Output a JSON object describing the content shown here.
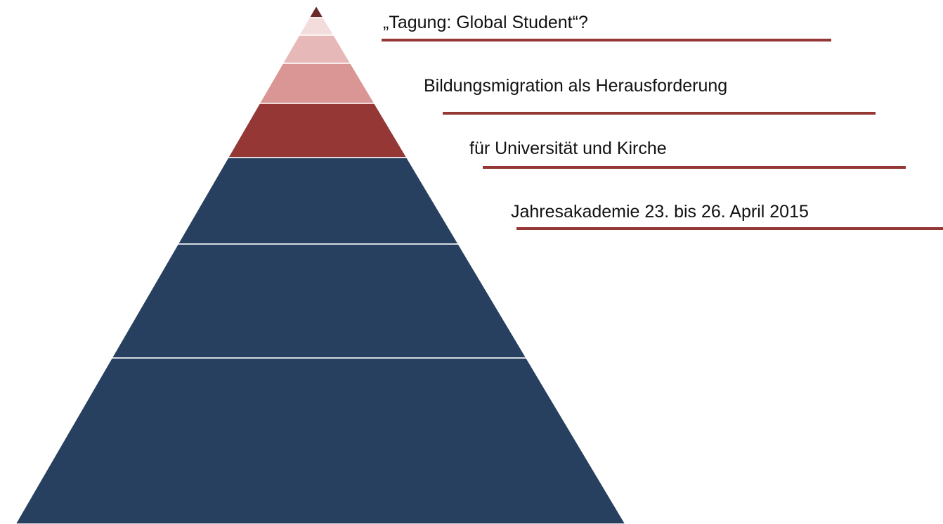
{
  "lines": [
    "„Tagung: Global Student“?",
    "Bildungsmigration als Herausforderung",
    "für Universität und Kirche",
    "Jahresakademie 23. bis 26. April 2015"
  ]
}
